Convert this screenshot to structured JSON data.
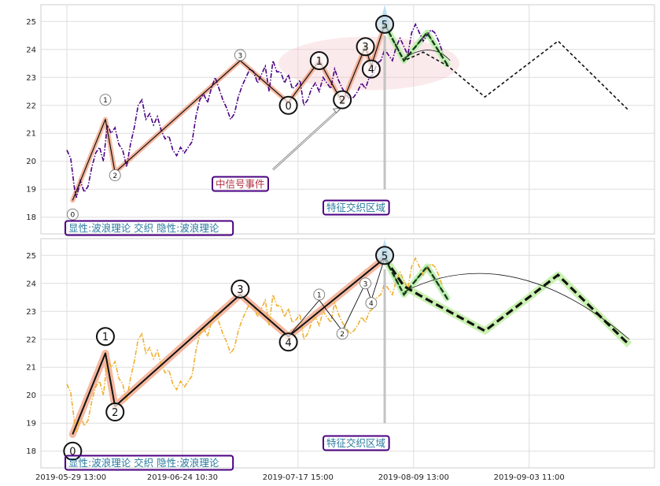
{
  "chart_data": [
    {
      "type": "line",
      "panel": "top",
      "ylim": [
        17.4,
        25.6
      ],
      "yticks": [
        18,
        19,
        20,
        21,
        22,
        23,
        24,
        25
      ],
      "series": [
        {
          "role": "price",
          "color": "#4b0082",
          "style": "dash-dot",
          "points": [
            [
              0,
              20.4
            ],
            [
              2,
              20.1
            ],
            [
              4,
              19.0
            ],
            [
              5,
              18.7
            ],
            [
              7,
              19.3
            ],
            [
              9,
              18.9
            ],
            [
              11,
              19.1
            ],
            [
              13,
              19.8
            ],
            [
              15,
              20.3
            ],
            [
              17,
              20.5
            ],
            [
              19,
              20.0
            ],
            [
              21,
              21.3
            ],
            [
              23,
              21.0
            ],
            [
              25,
              21.2
            ],
            [
              27,
              20.6
            ],
            [
              29,
              20.4
            ],
            [
              31,
              19.8
            ],
            [
              33,
              20.6
            ],
            [
              35,
              21.2
            ],
            [
              37,
              22.0
            ],
            [
              39,
              22.2
            ],
            [
              41,
              21.5
            ],
            [
              43,
              21.7
            ],
            [
              45,
              21.3
            ],
            [
              47,
              21.6
            ],
            [
              49,
              21.1
            ],
            [
              51,
              20.8
            ],
            [
              53,
              20.9
            ],
            [
              55,
              20.4
            ],
            [
              57,
              20.2
            ],
            [
              59,
              20.5
            ],
            [
              61,
              20.3
            ],
            [
              63,
              20.5
            ],
            [
              65,
              20.7
            ],
            [
              67,
              21.6
            ],
            [
              69,
              22.2
            ],
            [
              71,
              22.4
            ],
            [
              73,
              22.1
            ],
            [
              75,
              22.6
            ],
            [
              77,
              23.0
            ],
            [
              79,
              22.6
            ],
            [
              81,
              22.2
            ],
            [
              83,
              21.9
            ],
            [
              85,
              21.5
            ],
            [
              87,
              21.7
            ],
            [
              89,
              22.3
            ],
            [
              91,
              22.7
            ],
            [
              93,
              23.0
            ],
            [
              95,
              23.3
            ],
            [
              97,
              23.2
            ],
            [
              99,
              22.8
            ],
            [
              101,
              23.1
            ],
            [
              103,
              23.4
            ],
            [
              105,
              22.5
            ],
            [
              107,
              23.6
            ],
            [
              109,
              23.2
            ],
            [
              111,
              23.2
            ],
            [
              113,
              22.8
            ],
            [
              115,
              23.1
            ],
            [
              117,
              22.6
            ],
            [
              119,
              22.7
            ],
            [
              121,
              22.9
            ],
            [
              123,
              22.0
            ],
            [
              125,
              22.2
            ],
            [
              127,
              22.6
            ],
            [
              129,
              22.8
            ],
            [
              131,
              22.5
            ],
            [
              133,
              23.0
            ],
            [
              135,
              22.8
            ],
            [
              137,
              22.6
            ],
            [
              139,
              23.3
            ],
            [
              141,
              22.9
            ],
            [
              143,
              22.6
            ],
            [
              145,
              22.4
            ],
            [
              147,
              22.2
            ],
            [
              149,
              22.3
            ],
            [
              151,
              22.5
            ],
            [
              153,
              22.8
            ],
            [
              155,
              22.6
            ],
            [
              157,
              23.0
            ],
            [
              159,
              23.1
            ],
            [
              161,
              23.5
            ],
            [
              163,
              23.6
            ],
            [
              165,
              24.0
            ],
            [
              167,
              23.8
            ],
            [
              169,
              23.6
            ],
            [
              171,
              24.1
            ],
            [
              173,
              24.4
            ],
            [
              175,
              24.1
            ],
            [
              177,
              23.8
            ],
            [
              179,
              24.6
            ],
            [
              181,
              24.9
            ],
            [
              183,
              24.6
            ],
            [
              185,
              24.3
            ],
            [
              187,
              24.5
            ],
            [
              189,
              24.7
            ],
            [
              191,
              24.6
            ],
            [
              193,
              24.3
            ],
            [
              195,
              23.9
            ]
          ]
        },
        {
          "role": "wave",
          "color": "#111111",
          "points": [
            [
              3,
              18.6
            ],
            [
              20,
              21.5
            ],
            [
              25,
              19.6
            ],
            [
              90,
              23.6
            ],
            [
              115,
              22.1
            ],
            [
              131,
              23.6
            ],
            [
              143,
              22.1
            ],
            [
              155,
              24.1
            ],
            [
              158,
              23.4
            ],
            [
              165,
              24.9
            ]
          ]
        },
        {
          "role": "forecast",
          "color": "#2a8f2a",
          "style": "dashed",
          "points": [
            [
              165,
              24.9
            ],
            [
              175,
              23.6
            ],
            [
              187,
              24.6
            ],
            [
              198,
              23.4
            ]
          ]
        },
        {
          "role": "forecast",
          "color": "#111111",
          "style": "dashed",
          "points": [
            [
              165,
              24.9
            ],
            [
              175,
              23.6
            ],
            [
              185,
              23.9
            ],
            [
              198,
              23.4
            ],
            [
              217,
              22.3
            ],
            [
              255,
              24.3
            ],
            [
              292,
              21.8
            ]
          ]
        }
      ],
      "wave_labels": [
        {
          "label": "0",
          "x": 3,
          "y": 18.1
        },
        {
          "label": "1",
          "x": 20,
          "y": 22.2
        },
        {
          "label": "2",
          "x": 25,
          "y": 19.5
        },
        {
          "label": "3",
          "x": 90,
          "y": 23.8
        },
        {
          "label": "0",
          "x": 115,
          "y": 22.0
        },
        {
          "label": "1",
          "x": 131,
          "y": 23.6
        },
        {
          "label": "2",
          "x": 143,
          "y": 22.2
        },
        {
          "label": "3",
          "x": 155,
          "y": 24.1
        },
        {
          "label": "4",
          "x": 158,
          "y": 23.3
        },
        {
          "label": "5",
          "x": 165,
          "y": 24.9
        }
      ],
      "annotations": [
        "中信号事件",
        "特征交织区域",
        "显性:波浪理论 交织 隐性:波浪理论"
      ]
    },
    {
      "type": "line",
      "panel": "bottom",
      "ylim": [
        17.4,
        25.6
      ],
      "yticks": [
        18,
        19,
        20,
        21,
        22,
        23,
        24,
        25
      ],
      "xticks": [
        "2019-05-29 13:00",
        "2019-06-24 10:30",
        "2019-07-17 15:00",
        "2019-08-09 13:00",
        "2019-09-03 11:00"
      ],
      "series": [
        {
          "role": "price",
          "color": "#f0b030",
          "style": "dash-dot",
          "points": [
            [
              0,
              20.4
            ],
            [
              2,
              20.1
            ],
            [
              4,
              19.0
            ],
            [
              5,
              18.7
            ],
            [
              7,
              19.3
            ],
            [
              9,
              18.9
            ],
            [
              11,
              19.1
            ],
            [
              13,
              19.8
            ],
            [
              15,
              20.3
            ],
            [
              17,
              20.5
            ],
            [
              19,
              20.0
            ],
            [
              21,
              21.3
            ],
            [
              23,
              21.0
            ],
            [
              25,
              21.2
            ],
            [
              27,
              20.6
            ],
            [
              29,
              20.4
            ],
            [
              31,
              19.8
            ],
            [
              33,
              20.6
            ],
            [
              35,
              21.2
            ],
            [
              37,
              22.0
            ],
            [
              39,
              22.2
            ],
            [
              41,
              21.5
            ],
            [
              43,
              21.7
            ],
            [
              45,
              21.3
            ],
            [
              47,
              21.6
            ],
            [
              49,
              21.1
            ],
            [
              51,
              20.8
            ],
            [
              53,
              20.9
            ],
            [
              55,
              20.4
            ],
            [
              57,
              20.2
            ],
            [
              59,
              20.5
            ],
            [
              61,
              20.3
            ],
            [
              63,
              20.5
            ],
            [
              65,
              20.7
            ],
            [
              67,
              21.6
            ],
            [
              69,
              22.2
            ],
            [
              71,
              22.4
            ],
            [
              73,
              22.1
            ],
            [
              75,
              22.6
            ],
            [
              77,
              23.0
            ],
            [
              79,
              22.6
            ],
            [
              81,
              22.2
            ],
            [
              83,
              21.9
            ],
            [
              85,
              21.5
            ],
            [
              87,
              21.7
            ],
            [
              89,
              22.3
            ],
            [
              91,
              22.7
            ],
            [
              93,
              23.0
            ],
            [
              95,
              23.3
            ],
            [
              97,
              23.2
            ],
            [
              99,
              22.8
            ],
            [
              101,
              23.1
            ],
            [
              103,
              23.4
            ],
            [
              105,
              22.5
            ],
            [
              107,
              23.6
            ],
            [
              109,
              23.2
            ],
            [
              111,
              23.2
            ],
            [
              113,
              22.8
            ],
            [
              115,
              23.1
            ],
            [
              117,
              22.6
            ],
            [
              119,
              22.7
            ],
            [
              121,
              22.9
            ],
            [
              123,
              22.0
            ],
            [
              125,
              22.2
            ],
            [
              127,
              22.6
            ],
            [
              129,
              22.8
            ],
            [
              131,
              22.5
            ],
            [
              133,
              23.0
            ],
            [
              135,
              22.8
            ],
            [
              137,
              22.6
            ],
            [
              139,
              23.3
            ],
            [
              141,
              22.9
            ],
            [
              143,
              22.6
            ],
            [
              145,
              22.4
            ],
            [
              147,
              22.2
            ],
            [
              149,
              22.3
            ],
            [
              151,
              22.5
            ],
            [
              153,
              22.8
            ],
            [
              155,
              22.6
            ],
            [
              157,
              23.0
            ],
            [
              159,
              23.1
            ],
            [
              161,
              23.5
            ],
            [
              163,
              23.6
            ],
            [
              165,
              24.0
            ],
            [
              167,
              23.8
            ],
            [
              169,
              23.6
            ],
            [
              171,
              24.1
            ],
            [
              173,
              24.4
            ],
            [
              175,
              24.1
            ],
            [
              177,
              23.8
            ],
            [
              179,
              24.6
            ],
            [
              181,
              24.9
            ],
            [
              183,
              24.6
            ],
            [
              185,
              24.3
            ],
            [
              187,
              24.5
            ],
            [
              189,
              24.7
            ],
            [
              191,
              24.6
            ],
            [
              193,
              24.3
            ],
            [
              195,
              23.9
            ]
          ]
        },
        {
          "role": "wave",
          "color": "#111111",
          "points": [
            [
              3,
              18.6
            ],
            [
              20,
              21.5
            ],
            [
              25,
              19.6
            ],
            [
              90,
              23.6
            ],
            [
              115,
              22.1
            ],
            [
              165,
              24.9
            ]
          ]
        },
        {
          "role": "wave-minor",
          "color": "#111111",
          "points": [
            [
              115,
              22.1
            ],
            [
              131,
              23.4
            ],
            [
              143,
              22.3
            ],
            [
              155,
              24.0
            ],
            [
              158,
              23.4
            ],
            [
              165,
              24.9
            ]
          ]
        },
        {
          "role": "forecast",
          "color": "#2a8f2a",
          "style": "dashed",
          "points": [
            [
              165,
              24.9
            ],
            [
              175,
              23.6
            ],
            [
              187,
              24.6
            ],
            [
              198,
              23.4
            ]
          ]
        },
        {
          "role": "forecast",
          "color": "#111111",
          "style": "dashed",
          "points": [
            [
              165,
              24.9
            ],
            [
              175,
              23.9
            ],
            [
              185,
              23.5
            ],
            [
              217,
              22.3
            ],
            [
              255,
              24.3
            ],
            [
              292,
              21.8
            ]
          ]
        }
      ],
      "wave_labels": [
        {
          "label": "0",
          "x": 3,
          "y": 18.0
        },
        {
          "label": "1",
          "x": 20,
          "y": 22.1
        },
        {
          "label": "2",
          "x": 25,
          "y": 19.4
        },
        {
          "label": "3",
          "x": 90,
          "y": 23.8
        },
        {
          "label": "4",
          "x": 115,
          "y": 21.9
        },
        {
          "label": "5",
          "x": 165,
          "y": 25.0
        },
        {
          "label": "1",
          "x": 131,
          "y": 23.6
        },
        {
          "label": "2",
          "x": 143,
          "y": 22.2
        },
        {
          "label": "3",
          "x": 155,
          "y": 24.0
        },
        {
          "label": "4",
          "x": 158,
          "y": 23.3
        }
      ],
      "annotations": [
        "特征交织区域",
        "显性:波浪理论 交织 隐性:波浪理论"
      ]
    }
  ]
}
